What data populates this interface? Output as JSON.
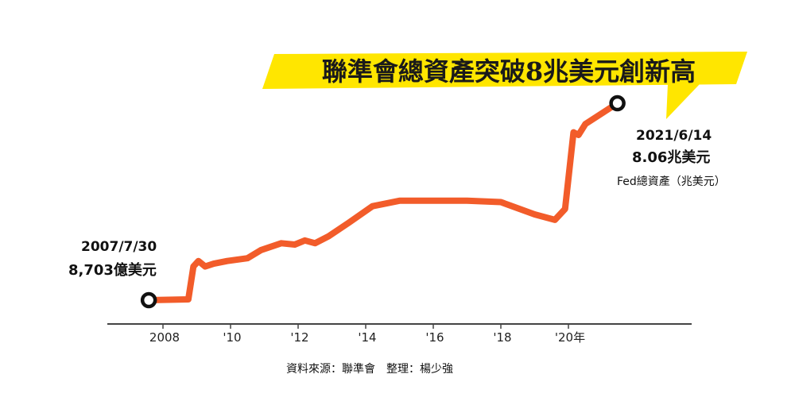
{
  "headline": "聯準會總資產突破8兆美元創新高",
  "start_annotation": {
    "date": "2007/7/30",
    "value": "8,703億美元"
  },
  "end_annotation": {
    "date": "2021/6/14",
    "value": "8.06兆美元"
  },
  "series_label": "Fed總資產（兆美元）",
  "source": "資料來源：聯準會　整理：楊少強",
  "colors": {
    "line": "#f25c2a",
    "headline_bg": "#ffe600",
    "axis": "#444444",
    "marker": "#111111"
  },
  "chart_data": {
    "type": "line",
    "title": "聯準會總資產突破8兆美元創新高",
    "xlabel": "",
    "ylabel": "",
    "x_ticks": [
      "2008",
      "'10",
      "'12",
      "'14",
      "'16",
      "'18",
      "'20年"
    ],
    "x_tick_years": [
      2008,
      2010,
      2012,
      2014,
      2016,
      2018,
      2020
    ],
    "xlim": [
      2007,
      2022
    ],
    "ylim": [
      0,
      9
    ],
    "grid": false,
    "series": [
      {
        "name": "Fed總資產（兆美元）",
        "x": [
          2007.58,
          2008.75,
          2008.9,
          2009.05,
          2009.25,
          2009.5,
          2009.9,
          2010.5,
          2010.9,
          2011.5,
          2011.9,
          2012.2,
          2012.5,
          2012.9,
          2013.5,
          2014.2,
          2015.0,
          2016.0,
          2017.0,
          2018.0,
          2019.0,
          2019.6,
          2019.9,
          2020.15,
          2020.3,
          2020.5,
          2021.45
        ],
        "values": [
          0.87,
          0.9,
          2.1,
          2.3,
          2.1,
          2.2,
          2.3,
          2.4,
          2.7,
          2.95,
          2.9,
          3.05,
          2.95,
          3.2,
          3.7,
          4.3,
          4.5,
          4.5,
          4.5,
          4.45,
          4.0,
          3.8,
          4.2,
          7.0,
          6.9,
          7.3,
          8.06
        ]
      }
    ]
  }
}
